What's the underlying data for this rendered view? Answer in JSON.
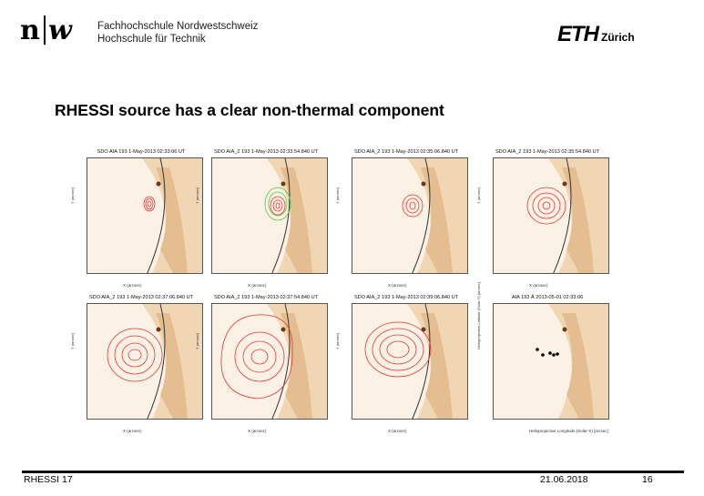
{
  "header": {
    "school_line1": "Fachhochschule Nordwestschweiz",
    "school_line2": "Hochschule für Technik",
    "eth_logo": "ETH",
    "eth_sub": "Zürich",
    "nw_logo": "nw"
  },
  "slide": {
    "title": "RHESSI source has a clear non-thermal component"
  },
  "panels": [
    {
      "title": "SDO AIA 193 1-May-2013 02:33:06 UT",
      "xlabel": "X (arcsec)",
      "ylabel": "Y (arcsec)"
    },
    {
      "title": "SDO AIA_2 193 1-May-2013 02:33:54.840 UT",
      "xlabel": "X (arcsec)",
      "ylabel": "Y (arcsec)"
    },
    {
      "title": "SDO AIA_2 193 1-May-2013 02:35:06.840 UT",
      "xlabel": "X (arcsec)",
      "ylabel": "Y (arcsec)"
    },
    {
      "title": "SDO AIA_2 193 1-May-2013 02:35:54.840 UT",
      "xlabel": "X (arcsec)",
      "ylabel": "Y (arcsec)"
    },
    {
      "title": "SDO AIA_2 193 1-May-2013 02:37:06.840 UT",
      "xlabel": "X (arcsec)",
      "ylabel": "Y (arcsec)"
    },
    {
      "title": "SDO AIA_2 193 1-May-2013 02:37:54.840 UT",
      "xlabel": "X (arcsec)",
      "ylabel": "Y (arcsec)"
    },
    {
      "title": "SDO AIA_2 193 1-May-2013 02:39:06.840 UT",
      "xlabel": "X (arcsec)",
      "ylabel": "Y (arcsec)"
    },
    {
      "title": "AIA 193 Å 2013-05-01 02:33:06",
      "xlabel": "Helioprojective Longitude (Solar-X) [arcsec]",
      "ylabel": "Helioprojective Latitude (Solar-Y) [arcsec]"
    }
  ],
  "footer": {
    "left": "RHESSI 17",
    "date": "21.06.2018",
    "page": "16"
  }
}
